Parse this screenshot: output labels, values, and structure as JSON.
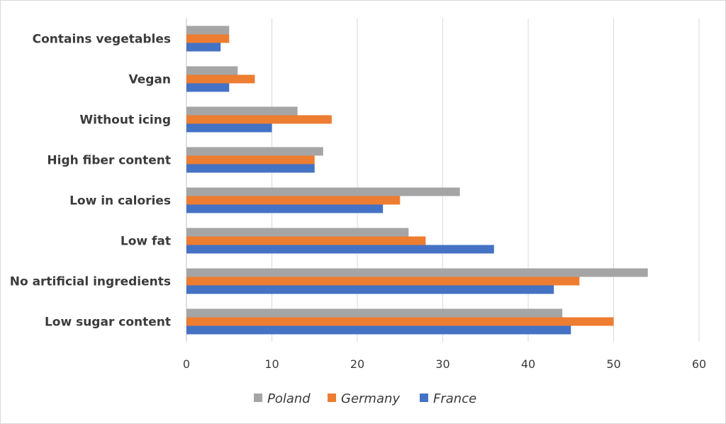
{
  "chart_data": {
    "type": "bar",
    "orientation": "horizontal",
    "categories": [
      "Low sugar content",
      "No artificial ingredients",
      "Low fat",
      "Low in calories",
      "High fiber content",
      "Without icing",
      "Vegan",
      "Contains vegetables"
    ],
    "series": [
      {
        "name": "Poland",
        "color": "#a5a5a5",
        "values": [
          44,
          54,
          26,
          32,
          16,
          13,
          6,
          5
        ]
      },
      {
        "name": "Germany",
        "color": "#ed7d31",
        "values": [
          50,
          46,
          28,
          25,
          15,
          17,
          8,
          5
        ]
      },
      {
        "name": "France",
        "color": "#4472c4",
        "values": [
          45,
          43,
          36,
          23,
          15,
          10,
          5,
          4
        ]
      }
    ],
    "xlim": [
      0,
      60
    ],
    "xticks": [
      0,
      10,
      20,
      30,
      40,
      50,
      60
    ],
    "grid": true,
    "legend_position": "bottom"
  }
}
